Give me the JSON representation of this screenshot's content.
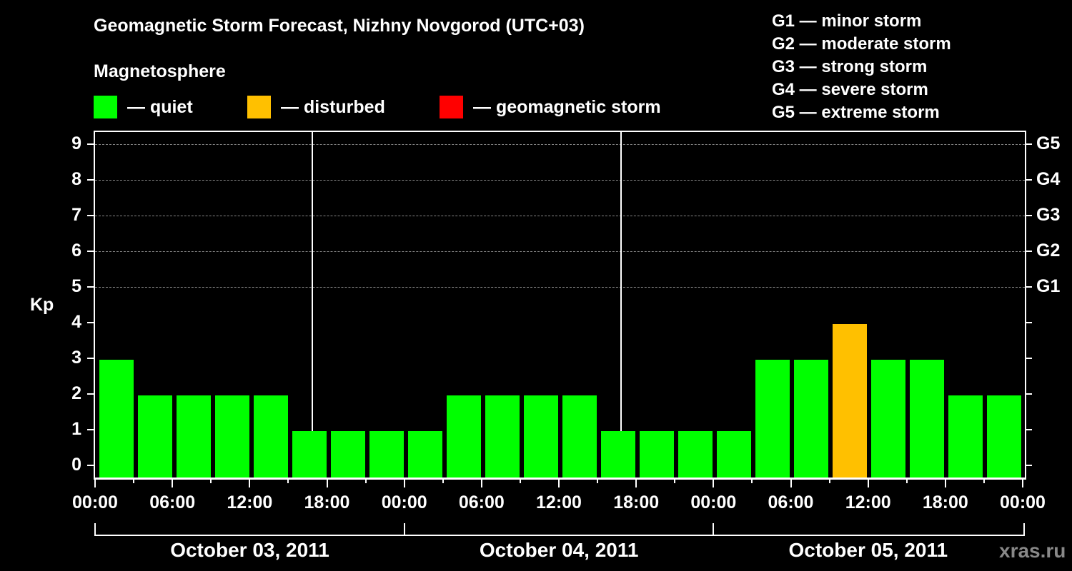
{
  "title": "Geomagnetic Storm Forecast, Nizhny Novgorod (UTC+03)",
  "subtitle": "Magnetosphere",
  "legend": [
    {
      "label": "— quiet",
      "color": "#00ff00"
    },
    {
      "label": "— disturbed",
      "color": "#ffc000"
    },
    {
      "label": "— geomagnetic storm",
      "color": "#ff0000"
    }
  ],
  "g_scale_legend": [
    "G1 — minor storm",
    "G2 — moderate storm",
    "G3 — strong storm",
    "G4 — severe storm",
    "G5 — extreme storm"
  ],
  "y_axis_label": "Kp",
  "y_ticks": [
    "0",
    "1",
    "2",
    "3",
    "4",
    "5",
    "6",
    "7",
    "8",
    "9"
  ],
  "g_ticks": [
    {
      "kp": 5,
      "label": "G1"
    },
    {
      "kp": 6,
      "label": "G2"
    },
    {
      "kp": 7,
      "label": "G3"
    },
    {
      "kp": 8,
      "label": "G4"
    },
    {
      "kp": 9,
      "label": "G5"
    }
  ],
  "x_tick_labels": [
    "00:00",
    "06:00",
    "12:00",
    "18:00",
    "00:00",
    "06:00",
    "12:00",
    "18:00",
    "00:00",
    "06:00",
    "12:00",
    "18:00",
    "00:00"
  ],
  "dates": [
    "October 03, 2011",
    "October 04, 2011",
    "October 05, 2011"
  ],
  "watermark": "xras.ru",
  "chart_data": {
    "type": "bar",
    "title": "Geomagnetic Storm Forecast, Nizhny Novgorod (UTC+03)",
    "subtitle": "Magnetosphere",
    "xlabel": "",
    "ylabel": "Kp",
    "ylim": [
      0,
      9
    ],
    "secondary_y_labels": {
      "5": "G1",
      "6": "G2",
      "7": "G3",
      "8": "G4",
      "9": "G5"
    },
    "grid": "dashed horizontal at Kp 5-9",
    "legend_position": "top",
    "categories": [
      "Oct 03 00:00",
      "Oct 03 03:00",
      "Oct 03 06:00",
      "Oct 03 09:00",
      "Oct 03 12:00",
      "Oct 03 15:00",
      "Oct 03 18:00",
      "Oct 03 21:00",
      "Oct 04 00:00",
      "Oct 04 03:00",
      "Oct 04 06:00",
      "Oct 04 09:00",
      "Oct 04 12:00",
      "Oct 04 15:00",
      "Oct 04 18:00",
      "Oct 04 21:00",
      "Oct 05 00:00",
      "Oct 05 03:00",
      "Oct 05 06:00",
      "Oct 05 09:00",
      "Oct 05 12:00",
      "Oct 05 15:00",
      "Oct 05 18:00",
      "Oct 05 21:00"
    ],
    "values": [
      3,
      2,
      2,
      2,
      2,
      1,
      1,
      1,
      1,
      2,
      2,
      2,
      2,
      1,
      1,
      1,
      1,
      3,
      3,
      4,
      3,
      3,
      2,
      2
    ],
    "bar_status": [
      "quiet",
      "quiet",
      "quiet",
      "quiet",
      "quiet",
      "quiet",
      "quiet",
      "quiet",
      "quiet",
      "quiet",
      "quiet",
      "quiet",
      "quiet",
      "quiet",
      "quiet",
      "quiet",
      "quiet",
      "quiet",
      "quiet",
      "disturbed",
      "quiet",
      "quiet",
      "quiet",
      "quiet"
    ],
    "status_colors": {
      "quiet": "#00ff00",
      "disturbed": "#ffc000",
      "storm": "#ff0000"
    }
  }
}
